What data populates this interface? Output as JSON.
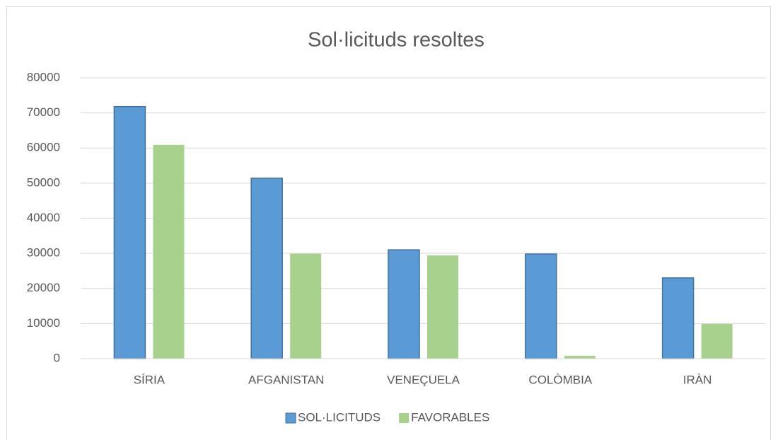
{
  "chart_data": {
    "type": "bar",
    "title": "Sol·licituds resoltes",
    "categories": [
      "SÍRIA",
      "AFGANISTAN",
      "VENEÇUELA",
      "COLÒMBIA",
      "IRÀN"
    ],
    "series": [
      {
        "name": "SOL·LICITUDS",
        "color": "#5b9bd5",
        "values": [
          71800,
          51400,
          31000,
          29800,
          23000
        ]
      },
      {
        "name": "FAVORABLES",
        "color": "#a9d18e",
        "values": [
          60900,
          29900,
          29400,
          800,
          9900
        ]
      }
    ],
    "ylim": [
      0,
      80000
    ],
    "yticks": [
      0,
      10000,
      20000,
      30000,
      40000,
      50000,
      60000,
      70000,
      80000
    ],
    "grid": true,
    "legend": "bottom"
  }
}
